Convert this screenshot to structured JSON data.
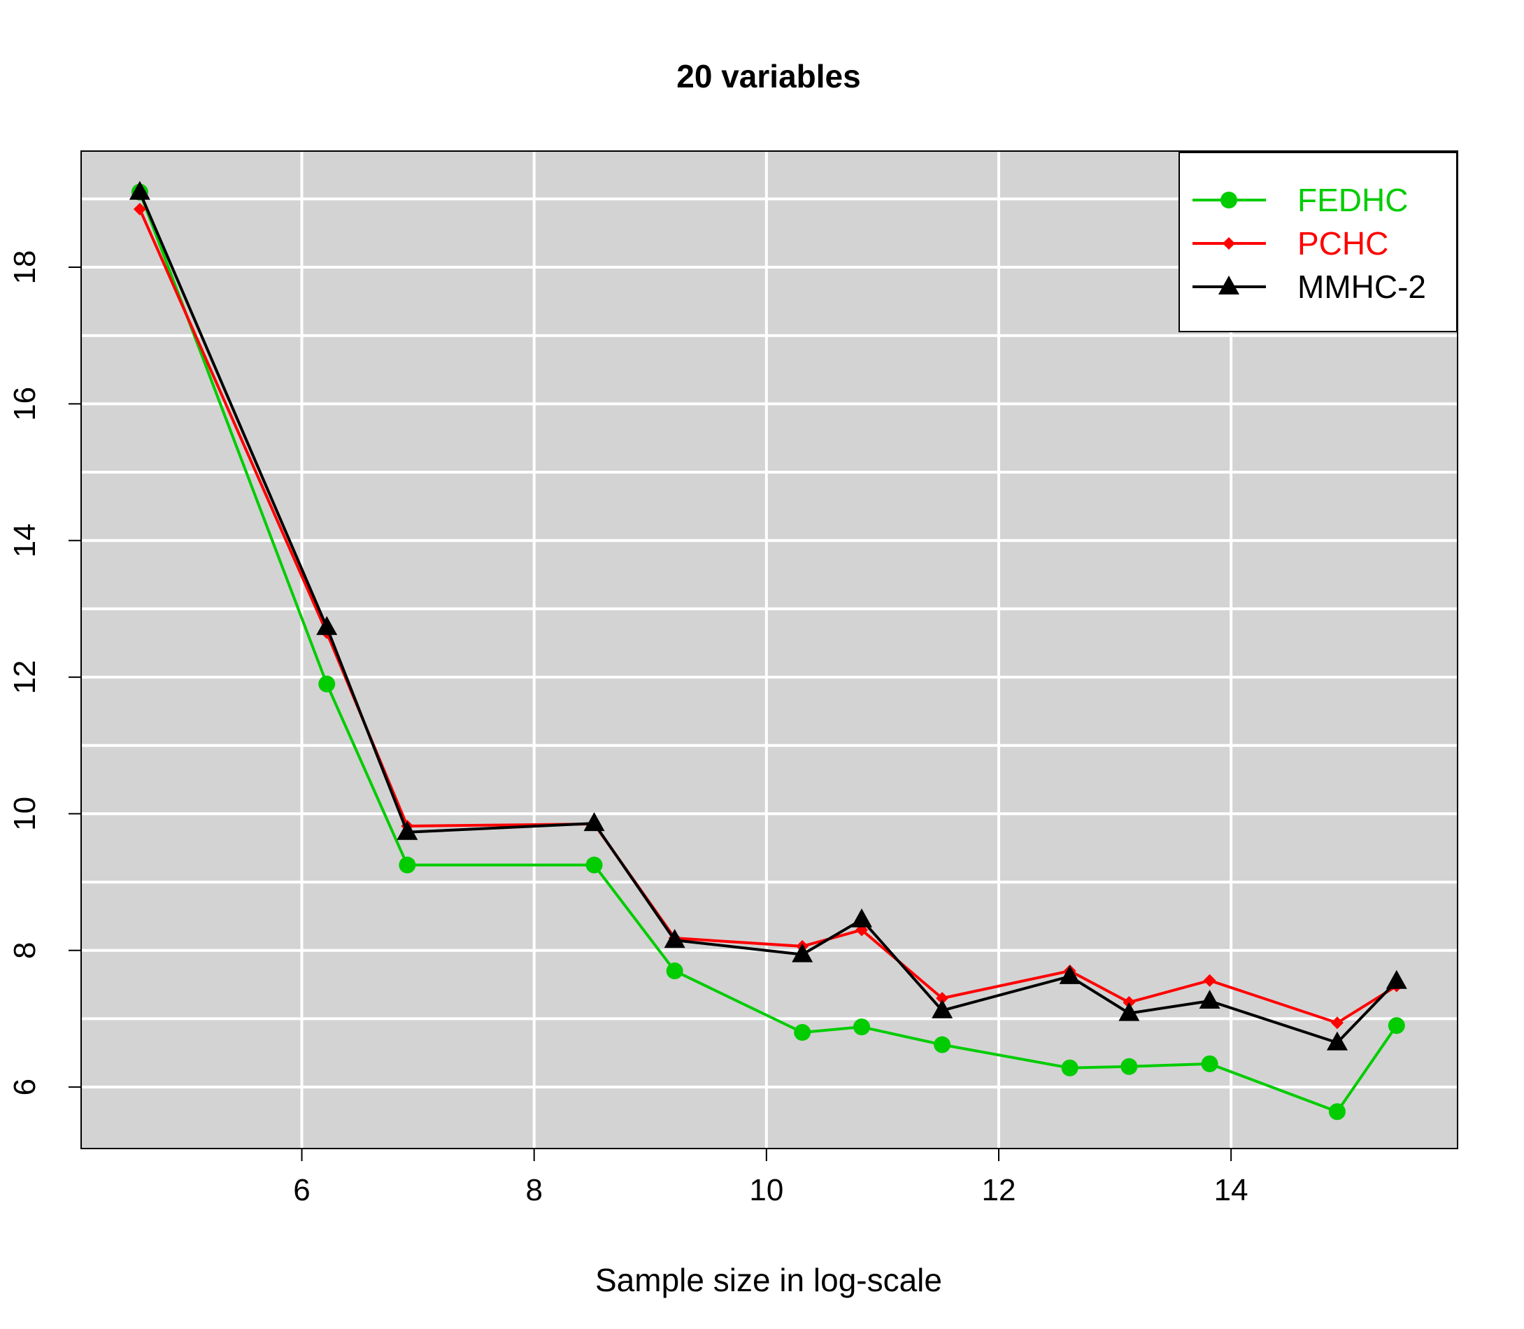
{
  "chart_data": {
    "type": "line",
    "title": "20 variables",
    "xlabel": "Sample size in log-scale",
    "ylabel": "",
    "xlim": [
      4.1,
      15.95
    ],
    "ylim": [
      5.1,
      19.7
    ],
    "x_ticks": [
      6,
      8,
      10,
      12,
      14
    ],
    "y_ticks": [
      6,
      8,
      10,
      12,
      14,
      16,
      18
    ],
    "x_grid": [
      6,
      8,
      10,
      12,
      14
    ],
    "y_grid": [
      6,
      7,
      8,
      9,
      10,
      11,
      12,
      13,
      14,
      15,
      16,
      17,
      18,
      19
    ],
    "grid": true,
    "background": "#d3d3d3",
    "legend_position": "top-right",
    "x": [
      4.605,
      6.215,
      6.908,
      8.517,
      9.21,
      10.309,
      10.82,
      11.513,
      12.612,
      13.122,
      13.816,
      14.914,
      15.425
    ],
    "series": [
      {
        "name": "FEDHC",
        "color": "#00cc00",
        "marker": "circle",
        "values": [
          19.1,
          11.9,
          9.25,
          9.25,
          7.7,
          6.8,
          6.88,
          6.62,
          6.28,
          6.3,
          6.34,
          5.64,
          6.9
        ]
      },
      {
        "name": "PCHC",
        "color": "#ff0000",
        "marker": "diamond",
        "values": [
          18.85,
          12.65,
          9.82,
          9.85,
          8.18,
          8.06,
          8.3,
          7.3,
          7.7,
          7.24,
          7.56,
          6.94,
          7.48
        ]
      },
      {
        "name": "MMHC-2",
        "color": "#000000",
        "marker": "triangle",
        "values": [
          19.1,
          12.73,
          9.73,
          9.86,
          8.15,
          7.94,
          8.45,
          7.12,
          7.62,
          7.08,
          7.26,
          6.65,
          7.55
        ]
      }
    ]
  }
}
